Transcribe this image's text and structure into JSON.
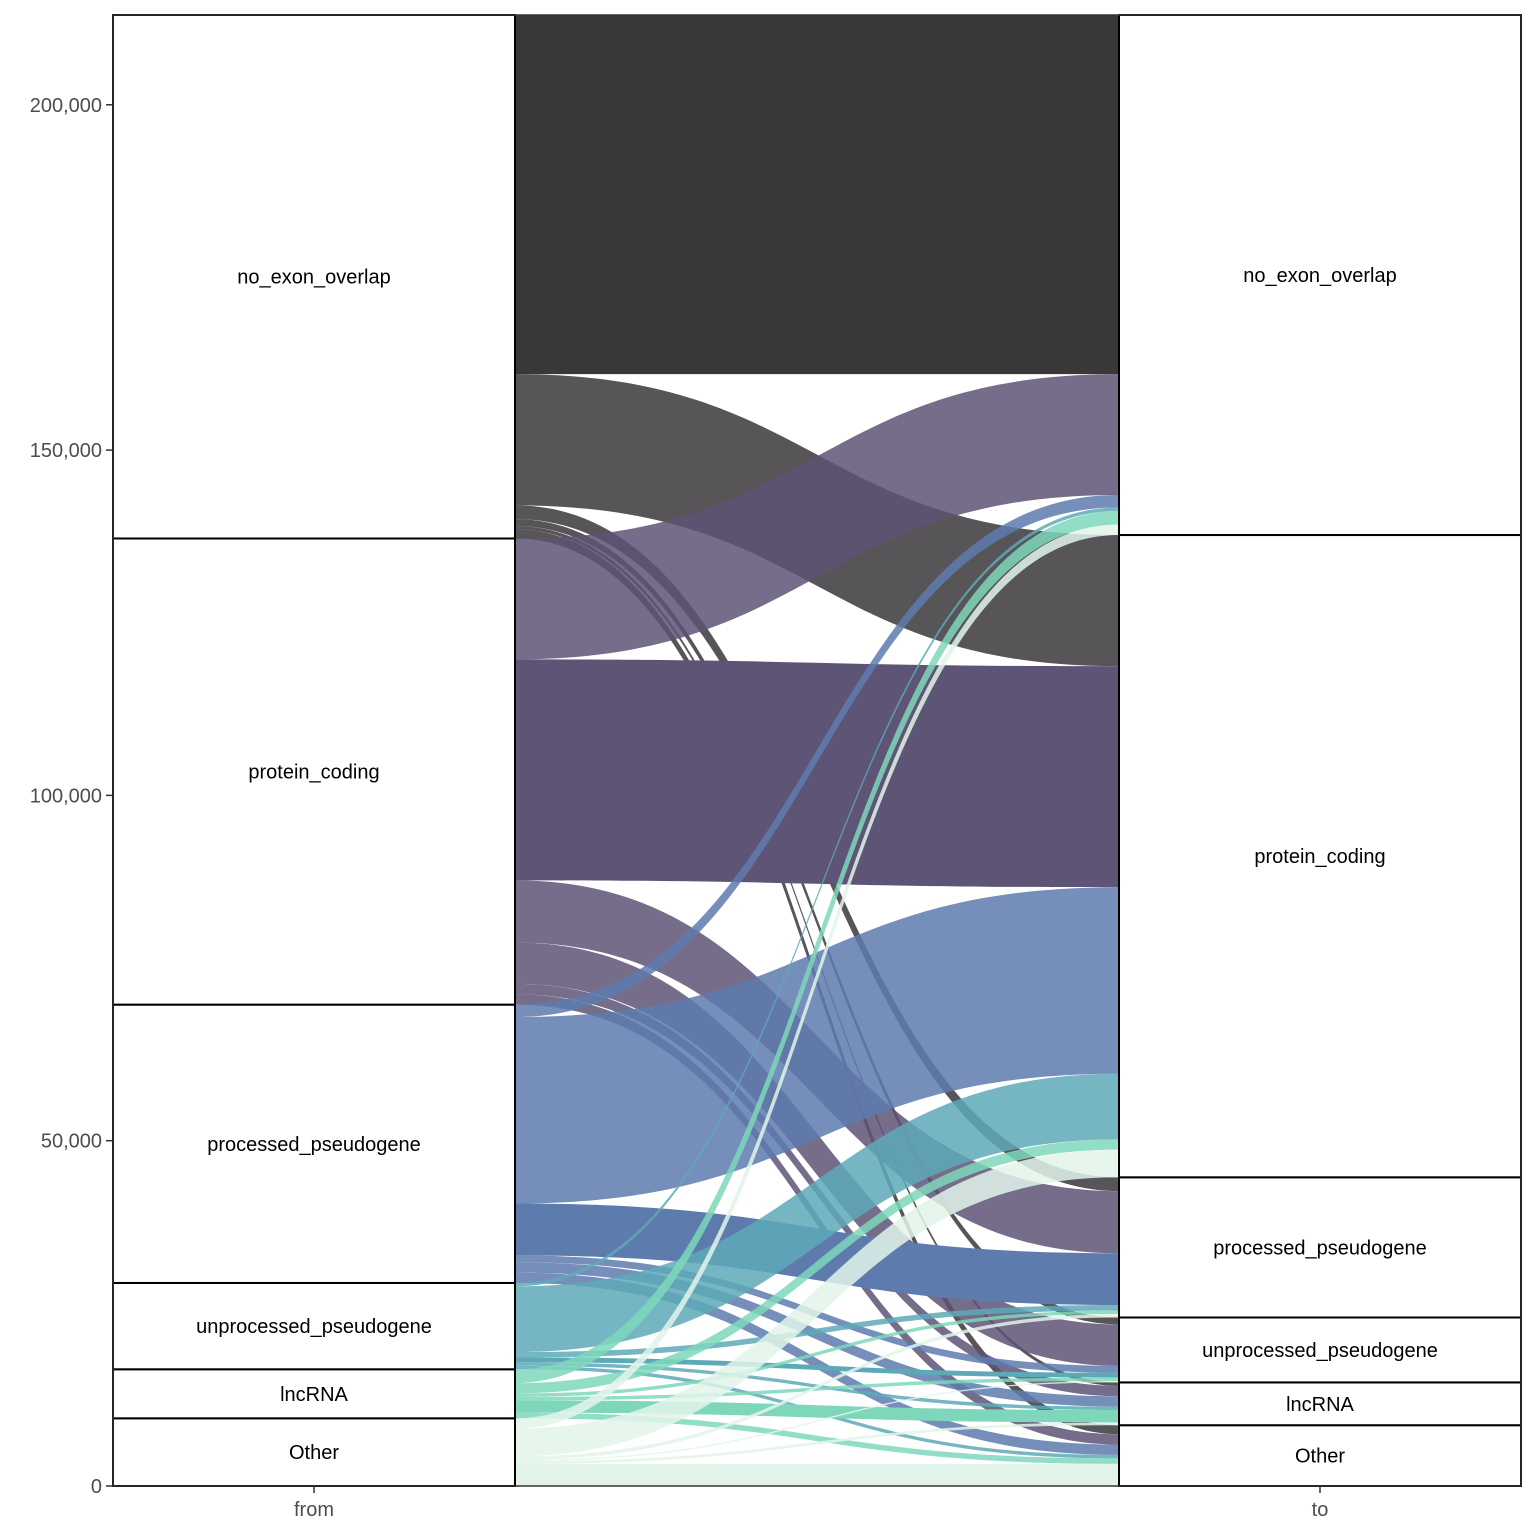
{
  "chart_data": {
    "type": "alluvial",
    "axes": [
      "from",
      "to"
    ],
    "y_ticks": [
      {
        "value": 0,
        "label": "0"
      },
      {
        "value": 50000,
        "label": "50,000"
      },
      {
        "value": 100000,
        "label": "100,000"
      },
      {
        "value": 150000,
        "label": "150,000"
      },
      {
        "value": 200000,
        "label": "200,000"
      }
    ],
    "ylim": [
      0,
      213000
    ],
    "categories": [
      "no_exon_overlap",
      "protein_coding",
      "processed_pseudogene",
      "unprocessed_pseudogene",
      "lncRNA",
      "Other"
    ],
    "colors": {
      "no_exon_overlap": "#3a3739",
      "protein_coding": "#5e5475",
      "processed_pseudogene": "#5e7bae",
      "unprocessed_pseudogene": "#5ea9b8",
      "lncRNA": "#7ed7bb",
      "Other": "#e2f4ea"
    },
    "from_totals": {
      "no_exon_overlap": 75800,
      "protein_coding": 67500,
      "processed_pseudogene": 40300,
      "unprocessed_pseudogene": 12500,
      "lncRNA": 7100,
      "Other": 9800
    },
    "to_totals": {
      "no_exon_overlap": 75300,
      "protein_coding": 93000,
      "processed_pseudogene": 20300,
      "unprocessed_pseudogene": 9400,
      "lncRNA": 6200,
      "Other": 8800
    },
    "flows": [
      {
        "from": "no_exon_overlap",
        "to": "no_exon_overlap",
        "value": 52000
      },
      {
        "from": "no_exon_overlap",
        "to": "protein_coding",
        "value": 19000
      },
      {
        "from": "no_exon_overlap",
        "to": "processed_pseudogene",
        "value": 2000
      },
      {
        "from": "no_exon_overlap",
        "to": "unprocessed_pseudogene",
        "value": 1000
      },
      {
        "from": "no_exon_overlap",
        "to": "lncRNA",
        "value": 500
      },
      {
        "from": "no_exon_overlap",
        "to": "Other",
        "value": 1300
      },
      {
        "from": "protein_coding",
        "to": "no_exon_overlap",
        "value": 17500
      },
      {
        "from": "protein_coding",
        "to": "protein_coding",
        "value": 32000
      },
      {
        "from": "protein_coding",
        "to": "processed_pseudogene",
        "value": 9000
      },
      {
        "from": "protein_coding",
        "to": "unprocessed_pseudogene",
        "value": 6000
      },
      {
        "from": "protein_coding",
        "to": "lncRNA",
        "value": 1500
      },
      {
        "from": "protein_coding",
        "to": "Other",
        "value": 1500
      },
      {
        "from": "processed_pseudogene",
        "to": "no_exon_overlap",
        "value": 1800
      },
      {
        "from": "processed_pseudogene",
        "to": "protein_coding",
        "value": 27000
      },
      {
        "from": "processed_pseudogene",
        "to": "processed_pseudogene",
        "value": 7500
      },
      {
        "from": "processed_pseudogene",
        "to": "unprocessed_pseudogene",
        "value": 1000
      },
      {
        "from": "processed_pseudogene",
        "to": "lncRNA",
        "value": 1500
      },
      {
        "from": "processed_pseudogene",
        "to": "Other",
        "value": 1500
      },
      {
        "from": "unprocessed_pseudogene",
        "to": "no_exon_overlap",
        "value": 500
      },
      {
        "from": "unprocessed_pseudogene",
        "to": "protein_coding",
        "value": 9500
      },
      {
        "from": "unprocessed_pseudogene",
        "to": "processed_pseudogene",
        "value": 800
      },
      {
        "from": "unprocessed_pseudogene",
        "to": "unprocessed_pseudogene",
        "value": 700
      },
      {
        "from": "unprocessed_pseudogene",
        "to": "lncRNA",
        "value": 500
      },
      {
        "from": "unprocessed_pseudogene",
        "to": "Other",
        "value": 500
      },
      {
        "from": "lncRNA",
        "to": "no_exon_overlap",
        "value": 2000
      },
      {
        "from": "lncRNA",
        "to": "protein_coding",
        "value": 1500
      },
      {
        "from": "lncRNA",
        "to": "processed_pseudogene",
        "value": 500
      },
      {
        "from": "lncRNA",
        "to": "unprocessed_pseudogene",
        "value": 500
      },
      {
        "from": "lncRNA",
        "to": "lncRNA",
        "value": 1800
      },
      {
        "from": "lncRNA",
        "to": "Other",
        "value": 800
      },
      {
        "from": "Other",
        "to": "no_exon_overlap",
        "value": 1500
      },
      {
        "from": "Other",
        "to": "protein_coding",
        "value": 4000
      },
      {
        "from": "Other",
        "to": "processed_pseudogene",
        "value": 500
      },
      {
        "from": "Other",
        "to": "unprocessed_pseudogene",
        "value": 200
      },
      {
        "from": "Other",
        "to": "lncRNA",
        "value": 400
      },
      {
        "from": "Other",
        "to": "Other",
        "value": 3200
      }
    ],
    "grid": false,
    "legend": "none"
  }
}
